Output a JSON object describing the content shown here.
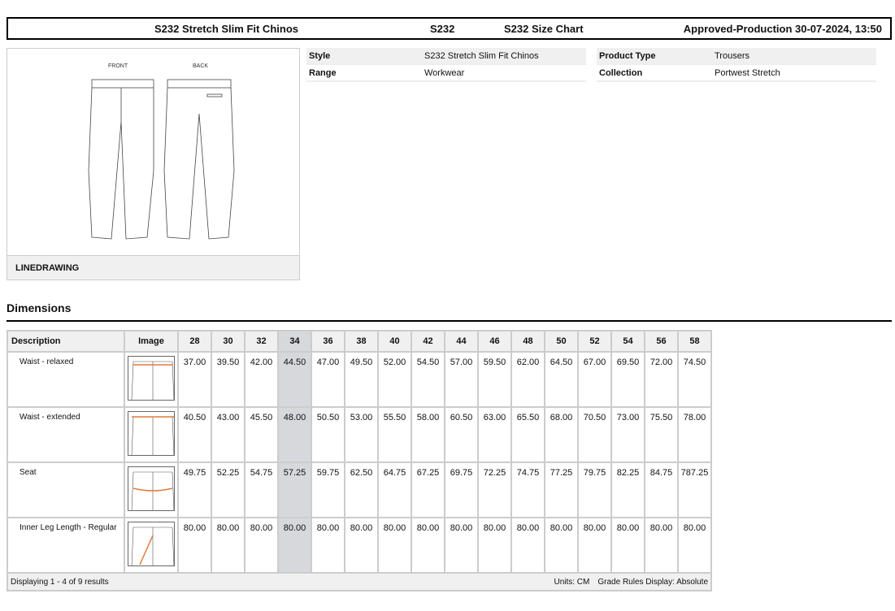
{
  "header": {
    "style_name": "S232 Stretch Slim Fit Chinos",
    "code": "S232",
    "chart_name": "S232 Size Chart",
    "status": "Approved-Production 30-07-2024, 13:50"
  },
  "drawing": {
    "front_label": "FRONT",
    "back_label": "BACK",
    "caption": "LINEDRAWING"
  },
  "properties": [
    {
      "label": "Style",
      "value": "S232 Stretch Slim Fit Chinos"
    },
    {
      "label": "Range",
      "value": "Workwear"
    },
    {
      "label": "Product Type",
      "value": "Trousers"
    },
    {
      "label": "Collection",
      "value": "Portwest Stretch"
    }
  ],
  "dimensions": {
    "title": "Dimensions",
    "columns": {
      "description": "Description",
      "image": "Image"
    },
    "sizes": [
      "28",
      "30",
      "32",
      "34",
      "36",
      "38",
      "40",
      "42",
      "44",
      "46",
      "48",
      "50",
      "52",
      "54",
      "56",
      "58"
    ],
    "highlighted_size": "34",
    "rows": [
      {
        "description": "Waist - relaxed",
        "values": [
          "37.00",
          "39.50",
          "42.00",
          "44.50",
          "47.00",
          "49.50",
          "52.00",
          "54.50",
          "57.00",
          "59.50",
          "62.00",
          "64.50",
          "67.00",
          "69.50",
          "72.00",
          "74.50"
        ]
      },
      {
        "description": "Waist - extended",
        "values": [
          "40.50",
          "43.00",
          "45.50",
          "48.00",
          "50.50",
          "53.00",
          "55.50",
          "58.00",
          "60.50",
          "63.00",
          "65.50",
          "68.00",
          "70.50",
          "73.00",
          "75.50",
          "78.00"
        ]
      },
      {
        "description": "Seat",
        "values": [
          "49.75",
          "52.25",
          "54.75",
          "57.25",
          "59.75",
          "62.50",
          "64.75",
          "67.25",
          "69.75",
          "72.25",
          "74.75",
          "77.25",
          "79.75",
          "82.25",
          "84.75",
          "787.25"
        ]
      },
      {
        "description": "Inner Leg Length - Regular",
        "values": [
          "80.00",
          "80.00",
          "80.00",
          "80.00",
          "80.00",
          "80.00",
          "80.00",
          "80.00",
          "80.00",
          "80.00",
          "80.00",
          "80.00",
          "80.00",
          "80.00",
          "80.00",
          "80.00"
        ]
      }
    ],
    "footer": {
      "results": "Displaying 1 - 4 of 9 results",
      "units": "Units: CM",
      "grade_rules": "Grade Rules Display: Absolute"
    },
    "accent_color": "#e07a3c"
  }
}
